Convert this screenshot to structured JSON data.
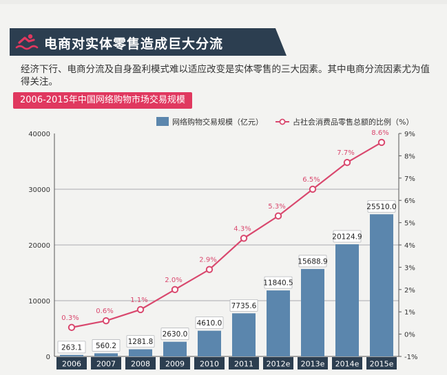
{
  "header": {
    "title": "电商对实体零售造成巨大分流",
    "icon": "person-swimming-icon"
  },
  "intro_text": "经济下行、电商分流及自身盈利模式难以适应改变是实体零售的三大因素。其中电商分流因素尤为值得关注。",
  "colors": {
    "banner": "#2c3e50",
    "accent": "#e0385f",
    "bar": "#5b86ad",
    "line": "#d9486e",
    "year_label_bg": "#2c3e50"
  },
  "chart_data": {
    "type": "bar",
    "title": "2006-2015年中国网络购物市场交易规模",
    "categories": [
      "2006",
      "2007",
      "2008",
      "2009",
      "2010",
      "2011",
      "2012e",
      "2013e",
      "2014e",
      "2015e"
    ],
    "series": [
      {
        "name": "网络购物交易规模（亿元）",
        "type": "bar",
        "axis": "left",
        "values": [
          263.1,
          560.2,
          1281.8,
          2630.0,
          4610.0,
          7735.6,
          11840.5,
          15688.9,
          20124.9,
          25510.0
        ],
        "labels": [
          "263.1",
          "560.2",
          "1281.8",
          "2630.0",
          "4610.0",
          "7735.6",
          "11840.5",
          "15688.9",
          "20124.9",
          "25510.0"
        ]
      },
      {
        "name": "占社会消费品零售总额的比例（%）",
        "type": "line",
        "axis": "right",
        "values": [
          0.3,
          0.6,
          1.1,
          2.0,
          2.9,
          4.3,
          5.3,
          6.5,
          7.7,
          8.6
        ],
        "labels": [
          "0.3%",
          "0.6%",
          "1.1%",
          "2.0%",
          "2.9%",
          "4.3%",
          "5.3%",
          "6.5%",
          "7.7%",
          "8.6%"
        ]
      }
    ],
    "y_left": {
      "min": 0,
      "max": 40000,
      "ticks": [
        "0",
        "10000",
        "20000",
        "30000",
        "40000"
      ]
    },
    "y_right": {
      "min": -1,
      "max": 9,
      "ticks": [
        "-1%",
        "0%",
        "1%",
        "2%",
        "3%",
        "4%",
        "5%",
        "6%",
        "7%",
        "8%",
        "9%"
      ]
    },
    "legend_position": "top-right",
    "grid": true
  }
}
